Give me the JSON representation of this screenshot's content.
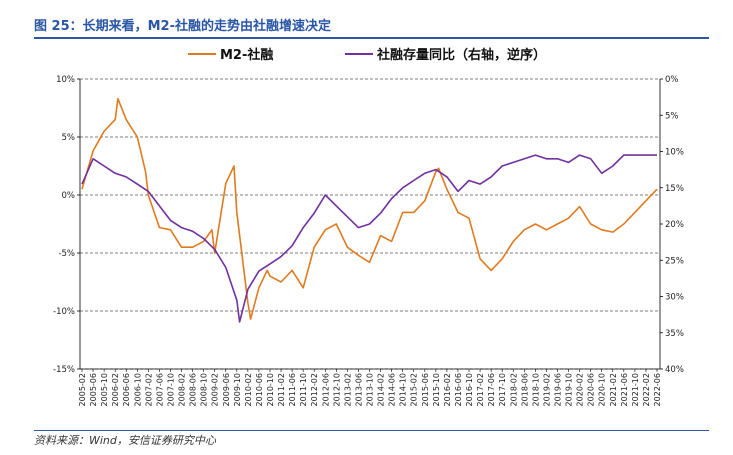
{
  "header": {
    "title": "图 25：长期来看，M2-社融的走势由社融增速决定"
  },
  "footer": {
    "source": "资料来源：Wind，安信证券研究中心"
  },
  "colors": {
    "title": "#2a56a6",
    "m2_series": "#e07a1f",
    "tsf_series": "#7030a0",
    "grid": "#000000"
  },
  "chart_data": {
    "type": "line",
    "legend": [
      "M2-社融",
      "社融存量同比（右轴，逆序）"
    ],
    "legend_placement": "top",
    "grid": "dashed horizontal",
    "left_axis": {
      "ticks": [
        "10%",
        "5%",
        "0%",
        "-5%",
        "-10%",
        "-15%"
      ],
      "ylim": [
        -15,
        10
      ]
    },
    "right_axis": {
      "ticks": [
        "0%",
        "5%",
        "10%",
        "15%",
        "20%",
        "25%",
        "30%",
        "35%",
        "40%"
      ],
      "ylim": [
        40,
        0
      ],
      "reversed": true
    },
    "x_ticks": [
      "2005-02",
      "2005-06",
      "2005-10",
      "2006-02",
      "2006-06",
      "2006-10",
      "2007-02",
      "2007-06",
      "2007-10",
      "2008-02",
      "2008-06",
      "2008-10",
      "2009-02",
      "2009-06",
      "2009-10",
      "2010-02",
      "2010-06",
      "2010-10",
      "2011-02",
      "2011-06",
      "2011-10",
      "2012-02",
      "2012-06",
      "2012-10",
      "2013-02",
      "2013-06",
      "2013-10",
      "2014-02",
      "2014-06",
      "2014-10",
      "2015-02",
      "2015-06",
      "2015-10",
      "2016-02",
      "2016-06",
      "2016-10",
      "2017-02",
      "2017-06",
      "2017-10",
      "2018-02",
      "2018-06",
      "2018-10",
      "2019-02",
      "2019-06",
      "2019-10",
      "2020-02",
      "2020-06",
      "2020-10",
      "2021-02",
      "2021-06",
      "2021-10",
      "2022-02",
      "2022-06"
    ],
    "series": [
      {
        "name": "M2-社融",
        "axis": "left",
        "x": [
          "2005-02",
          "2005-06",
          "2005-10",
          "2006-02",
          "2006-03",
          "2006-06",
          "2006-10",
          "2007-01",
          "2007-02",
          "2007-06",
          "2007-10",
          "2008-02",
          "2008-06",
          "2008-10",
          "2009-01",
          "2009-02",
          "2009-06",
          "2009-09",
          "2009-10",
          "2010-02",
          "2010-03",
          "2010-06",
          "2010-09",
          "2010-10",
          "2011-02",
          "2011-06",
          "2011-10",
          "2012-02",
          "2012-06",
          "2012-10",
          "2013-02",
          "2013-06",
          "2013-10",
          "2014-02",
          "2014-06",
          "2014-10",
          "2015-02",
          "2015-06",
          "2015-10",
          "2015-11",
          "2016-02",
          "2016-06",
          "2016-10",
          "2017-02",
          "2017-06",
          "2017-10",
          "2018-02",
          "2018-06",
          "2018-10",
          "2019-02",
          "2019-06",
          "2019-10",
          "2020-02",
          "2020-06",
          "2020-10",
          "2021-02",
          "2021-06",
          "2021-10",
          "2022-02",
          "2022-06"
        ],
        "values": [
          0.5,
          3.8,
          5.5,
          6.5,
          8.3,
          6.5,
          5.0,
          2.0,
          0.0,
          -2.8,
          -3.0,
          -4.5,
          -4.5,
          -4.0,
          -3.0,
          -5.0,
          1.0,
          2.5,
          -1.5,
          -9.3,
          -10.7,
          -8.0,
          -6.5,
          -7.0,
          -7.5,
          -6.5,
          -8.0,
          -4.5,
          -3.0,
          -2.5,
          -4.5,
          -5.2,
          -5.8,
          -3.5,
          -4.0,
          -1.5,
          -1.5,
          -0.5,
          2.0,
          2.3,
          0.5,
          -1.5,
          -2.0,
          -5.5,
          -6.5,
          -5.5,
          -4.0,
          -3.0,
          -2.5,
          -3.0,
          -2.5,
          -2.0,
          -1.0,
          -2.5,
          -3.0,
          -3.2,
          -2.5,
          -1.5,
          -0.5,
          0.5
        ]
      },
      {
        "name": "社融存量同比（右轴，逆序）",
        "axis": "right",
        "x": [
          "2005-02",
          "2005-06",
          "2005-10",
          "2006-02",
          "2006-06",
          "2006-10",
          "2007-02",
          "2007-06",
          "2007-10",
          "2008-02",
          "2008-06",
          "2008-10",
          "2009-02",
          "2009-06",
          "2009-10",
          "2009-11",
          "2010-02",
          "2010-06",
          "2010-10",
          "2011-02",
          "2011-06",
          "2011-10",
          "2012-02",
          "2012-06",
          "2012-10",
          "2013-02",
          "2013-06",
          "2013-10",
          "2014-02",
          "2014-06",
          "2014-10",
          "2015-02",
          "2015-06",
          "2015-10",
          "2016-02",
          "2016-06",
          "2016-10",
          "2017-02",
          "2017-06",
          "2017-10",
          "2018-02",
          "2018-06",
          "2018-10",
          "2019-02",
          "2019-06",
          "2019-10",
          "2020-02",
          "2020-06",
          "2020-10",
          "2021-02",
          "2021-06",
          "2021-10",
          "2022-02",
          "2022-06"
        ],
        "values": [
          14.5,
          11.0,
          12.0,
          13.0,
          13.5,
          14.5,
          15.5,
          17.5,
          19.5,
          20.5,
          21.0,
          22.0,
          23.5,
          26.0,
          30.5,
          33.5,
          29.0,
          26.5,
          25.5,
          24.5,
          23.0,
          20.5,
          18.5,
          16.0,
          17.5,
          19.0,
          20.5,
          20.0,
          18.5,
          16.5,
          15.0,
          14.0,
          13.0,
          12.5,
          13.5,
          15.5,
          14.0,
          14.5,
          13.5,
          12.0,
          11.5,
          11.0,
          10.5,
          11.0,
          11.0,
          11.5,
          10.5,
          11.0,
          13.0,
          12.0,
          10.5,
          10.5,
          10.5,
          10.5
        ]
      }
    ]
  }
}
